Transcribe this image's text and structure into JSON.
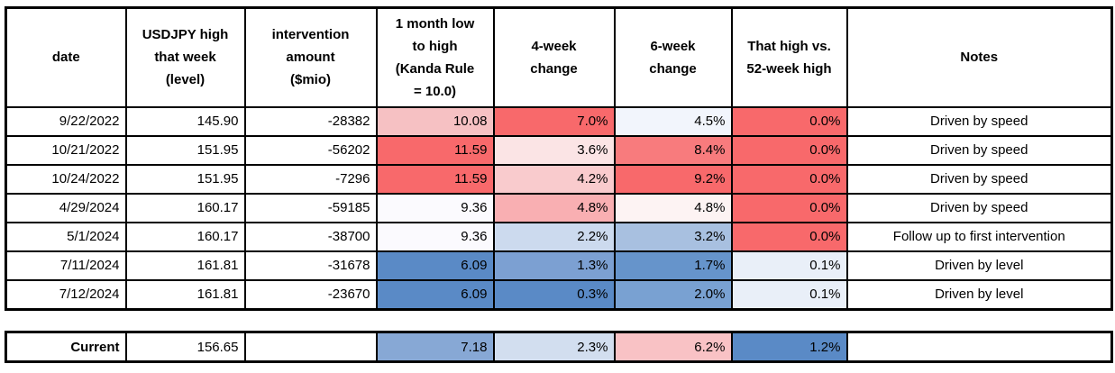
{
  "table": {
    "headers": [
      {
        "label": "date"
      },
      {
        "label": "USDJPY high\nthat week\n(level)"
      },
      {
        "label": "intervention\namount\n($mio)"
      },
      {
        "label": "1 month low\nto high\n(Kanda Rule\n= 10.0)"
      },
      {
        "label": "4-week\nchange"
      },
      {
        "label": "6-week\nchange"
      },
      {
        "label": "That high vs.\n52-week high"
      },
      {
        "label": "Notes"
      }
    ],
    "rows": [
      {
        "date": "9/22/2022",
        "usdjpy_high": "145.90",
        "intervention": "-28382",
        "kanda": {
          "v": "10.08",
          "bg": "#F6C1C3"
        },
        "wk4": {
          "v": "7.0%",
          "bg": "#F8696B"
        },
        "wk6": {
          "v": "4.5%",
          "bg": "#F2F5FC"
        },
        "vs52": {
          "v": "0.0%",
          "bg": "#F8696B"
        },
        "notes": "Driven by speed"
      },
      {
        "date": "10/21/2022",
        "usdjpy_high": "151.95",
        "intervention": "-56202",
        "kanda": {
          "v": "11.59",
          "bg": "#F8696B"
        },
        "wk4": {
          "v": "3.6%",
          "bg": "#FBE4E5"
        },
        "wk6": {
          "v": "8.4%",
          "bg": "#F87B7D"
        },
        "vs52": {
          "v": "0.0%",
          "bg": "#F8696B"
        },
        "notes": "Driven by speed"
      },
      {
        "date": "10/24/2022",
        "usdjpy_high": "151.95",
        "intervention": "-7296",
        "kanda": {
          "v": "11.59",
          "bg": "#F8696B"
        },
        "wk4": {
          "v": "4.2%",
          "bg": "#F9CBCD"
        },
        "wk6": {
          "v": "9.2%",
          "bg": "#F8696B"
        },
        "vs52": {
          "v": "0.0%",
          "bg": "#F8696B"
        },
        "notes": "Driven by speed"
      },
      {
        "date": "4/29/2024",
        "usdjpy_high": "160.17",
        "intervention": "-59185",
        "kanda": {
          "v": "9.36",
          "bg": "#FBFAFE"
        },
        "wk4": {
          "v": "4.8%",
          "bg": "#F9AFB2"
        },
        "wk6": {
          "v": "4.8%",
          "bg": "#FDF3F3"
        },
        "vs52": {
          "v": "0.0%",
          "bg": "#F8696B"
        },
        "notes": "Driven by speed"
      },
      {
        "date": "5/1/2024",
        "usdjpy_high": "160.17",
        "intervention": "-38700",
        "kanda": {
          "v": "9.36",
          "bg": "#FBFAFE"
        },
        "wk4": {
          "v": "2.2%",
          "bg": "#CCDAEE"
        },
        "wk6": {
          "v": "3.2%",
          "bg": "#A8C0E0"
        },
        "vs52": {
          "v": "0.0%",
          "bg": "#F8696B"
        },
        "notes": "Follow up to first intervention"
      },
      {
        "date": "7/11/2024",
        "usdjpy_high": "161.81",
        "intervention": "-31678",
        "kanda": {
          "v": "6.09",
          "bg": "#5A8AC6"
        },
        "wk4": {
          "v": "1.3%",
          "bg": "#7CA0D2"
        },
        "wk6": {
          "v": "1.7%",
          "bg": "#6694CB"
        },
        "vs52": {
          "v": "0.1%",
          "bg": "#E9EFF8"
        },
        "notes": "Driven by level"
      },
      {
        "date": "7/12/2024",
        "usdjpy_high": "161.81",
        "intervention": "-23670",
        "kanda": {
          "v": "6.09",
          "bg": "#5A8AC6"
        },
        "wk4": {
          "v": "0.3%",
          "bg": "#5A8AC6"
        },
        "wk6": {
          "v": "2.0%",
          "bg": "#79A1D2"
        },
        "vs52": {
          "v": "0.1%",
          "bg": "#E9EFF8"
        },
        "notes": "Driven by level"
      }
    ]
  },
  "current": {
    "label": "Current",
    "usdjpy_high": "156.65",
    "intervention": "",
    "kanda": {
      "v": "7.18",
      "bg": "#87A8D5"
    },
    "wk4": {
      "v": "2.3%",
      "bg": "#D2DEEF"
    },
    "wk6": {
      "v": "6.2%",
      "bg": "#F9C2C5"
    },
    "vs52": {
      "v": "1.2%",
      "bg": "#5A8AC6"
    },
    "notes": ""
  },
  "colors": {
    "scale_red": "#F8696B",
    "scale_white": "#FCFCFF",
    "scale_blue": "#5A8AC6",
    "border": "#000000"
  }
}
